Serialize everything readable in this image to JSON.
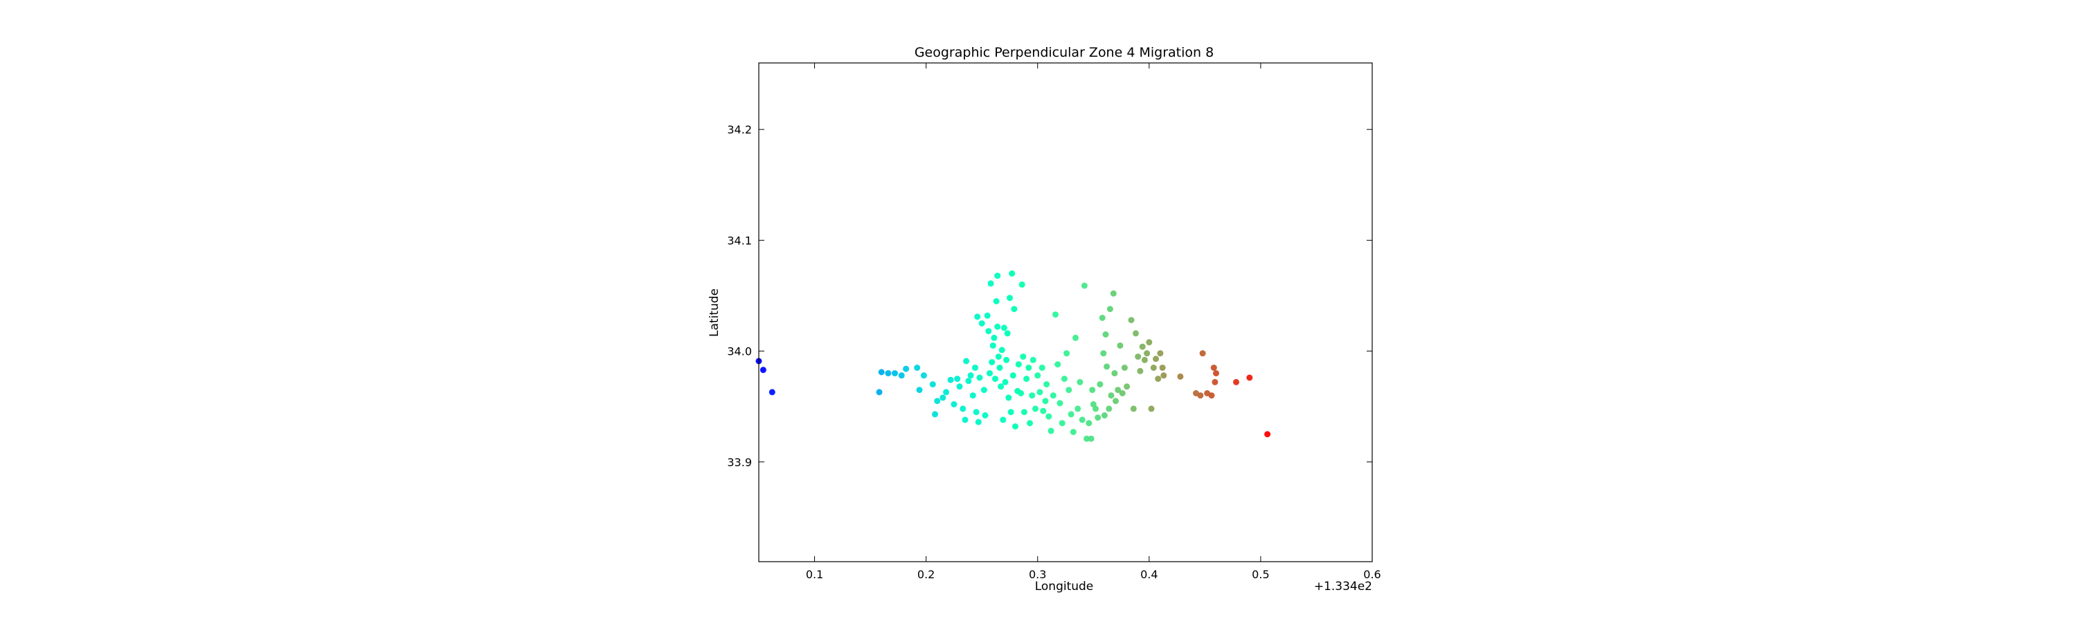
{
  "chart_data": {
    "type": "scatter",
    "title": "Geographic Perpendicular Zone 4 Migration 8",
    "xlabel": "Longitude",
    "ylabel": "Latitude",
    "x_offset_label": "+1.334e2",
    "xlim": [
      0.05,
      0.6
    ],
    "ylim": [
      33.81,
      34.26
    ],
    "x_ticks": [
      0.1,
      0.2,
      0.3,
      0.4,
      0.5,
      0.6
    ],
    "x_tick_labels": [
      "0.1",
      "0.2",
      "0.3",
      "0.4",
      "0.5",
      "0.6"
    ],
    "y_ticks": [
      33.9,
      34.0,
      34.1,
      34.2
    ],
    "y_tick_labels": [
      "33.9",
      "34.0",
      "34.1",
      "34.2"
    ],
    "grid": false,
    "colormap": "rainbow",
    "color_by": "longitude",
    "points": [
      [
        0.05,
        33.991
      ],
      [
        0.054,
        33.983
      ],
      [
        0.062,
        33.963
      ],
      [
        0.158,
        33.963
      ],
      [
        0.16,
        33.981
      ],
      [
        0.166,
        33.98
      ],
      [
        0.172,
        33.98
      ],
      [
        0.178,
        33.978
      ],
      [
        0.182,
        33.984
      ],
      [
        0.192,
        33.985
      ],
      [
        0.194,
        33.965
      ],
      [
        0.198,
        33.978
      ],
      [
        0.206,
        33.97
      ],
      [
        0.208,
        33.943
      ],
      [
        0.21,
        33.955
      ],
      [
        0.215,
        33.958
      ],
      [
        0.218,
        33.963
      ],
      [
        0.222,
        33.974
      ],
      [
        0.225,
        33.952
      ],
      [
        0.228,
        33.975
      ],
      [
        0.23,
        33.968
      ],
      [
        0.233,
        33.948
      ],
      [
        0.235,
        33.938
      ],
      [
        0.236,
        33.991
      ],
      [
        0.238,
        33.973
      ],
      [
        0.24,
        33.978
      ],
      [
        0.242,
        33.96
      ],
      [
        0.244,
        33.985
      ],
      [
        0.245,
        33.945
      ],
      [
        0.246,
        34.031
      ],
      [
        0.247,
        33.936
      ],
      [
        0.248,
        33.976
      ],
      [
        0.25,
        34.025
      ],
      [
        0.252,
        33.965
      ],
      [
        0.253,
        33.942
      ],
      [
        0.255,
        34.032
      ],
      [
        0.256,
        34.018
      ],
      [
        0.257,
        33.98
      ],
      [
        0.258,
        34.061
      ],
      [
        0.259,
        33.99
      ],
      [
        0.26,
        34.005
      ],
      [
        0.261,
        34.012
      ],
      [
        0.262,
        33.975
      ],
      [
        0.263,
        34.045
      ],
      [
        0.264,
        34.022
      ],
      [
        0.264,
        34.068
      ],
      [
        0.265,
        33.995
      ],
      [
        0.266,
        33.985
      ],
      [
        0.267,
        33.968
      ],
      [
        0.268,
        34.001
      ],
      [
        0.269,
        33.938
      ],
      [
        0.27,
        34.021
      ],
      [
        0.271,
        33.972
      ],
      [
        0.272,
        33.992
      ],
      [
        0.273,
        34.016
      ],
      [
        0.274,
        33.958
      ],
      [
        0.275,
        34.048
      ],
      [
        0.276,
        33.945
      ],
      [
        0.277,
        34.07
      ],
      [
        0.278,
        33.978
      ],
      [
        0.279,
        34.038
      ],
      [
        0.28,
        33.932
      ],
      [
        0.282,
        33.964
      ],
      [
        0.283,
        33.988
      ],
      [
        0.285,
        33.962
      ],
      [
        0.286,
        34.06
      ],
      [
        0.287,
        33.995
      ],
      [
        0.288,
        33.945
      ],
      [
        0.29,
        33.975
      ],
      [
        0.292,
        33.985
      ],
      [
        0.293,
        33.935
      ],
      [
        0.295,
        33.96
      ],
      [
        0.296,
        33.992
      ],
      [
        0.298,
        33.948
      ],
      [
        0.3,
        33.978
      ],
      [
        0.302,
        33.963
      ],
      [
        0.304,
        33.985
      ],
      [
        0.305,
        33.946
      ],
      [
        0.307,
        33.955
      ],
      [
        0.308,
        33.97
      ],
      [
        0.31,
        33.941
      ],
      [
        0.312,
        33.928
      ],
      [
        0.314,
        33.96
      ],
      [
        0.316,
        34.033
      ],
      [
        0.318,
        33.988
      ],
      [
        0.32,
        33.953
      ],
      [
        0.322,
        33.935
      ],
      [
        0.324,
        33.975
      ],
      [
        0.326,
        33.998
      ],
      [
        0.328,
        33.965
      ],
      [
        0.33,
        33.943
      ],
      [
        0.332,
        33.927
      ],
      [
        0.334,
        34.012
      ],
      [
        0.336,
        33.948
      ],
      [
        0.338,
        33.972
      ],
      [
        0.34,
        33.938
      ],
      [
        0.342,
        34.059
      ],
      [
        0.344,
        33.921
      ],
      [
        0.346,
        33.935
      ],
      [
        0.348,
        33.921
      ],
      [
        0.349,
        33.965
      ],
      [
        0.35,
        33.952
      ],
      [
        0.352,
        33.948
      ],
      [
        0.354,
        33.94
      ],
      [
        0.356,
        33.97
      ],
      [
        0.358,
        34.03
      ],
      [
        0.359,
        33.998
      ],
      [
        0.36,
        33.942
      ],
      [
        0.361,
        34.015
      ],
      [
        0.362,
        33.986
      ],
      [
        0.364,
        33.948
      ],
      [
        0.365,
        34.038
      ],
      [
        0.366,
        33.96
      ],
      [
        0.368,
        34.052
      ],
      [
        0.369,
        33.98
      ],
      [
        0.37,
        33.955
      ],
      [
        0.372,
        33.965
      ],
      [
        0.374,
        34.005
      ],
      [
        0.376,
        33.962
      ],
      [
        0.378,
        33.985
      ],
      [
        0.38,
        33.968
      ],
      [
        0.384,
        34.028
      ],
      [
        0.386,
        33.948
      ],
      [
        0.388,
        34.016
      ],
      [
        0.39,
        33.995
      ],
      [
        0.392,
        33.982
      ],
      [
        0.394,
        34.004
      ],
      [
        0.396,
        33.992
      ],
      [
        0.398,
        33.998
      ],
      [
        0.4,
        34.008
      ],
      [
        0.402,
        33.948
      ],
      [
        0.404,
        33.985
      ],
      [
        0.406,
        33.993
      ],
      [
        0.408,
        33.975
      ],
      [
        0.41,
        33.998
      ],
      [
        0.412,
        33.985
      ],
      [
        0.413,
        33.978
      ],
      [
        0.428,
        33.977
      ],
      [
        0.442,
        33.962
      ],
      [
        0.446,
        33.96
      ],
      [
        0.448,
        33.998
      ],
      [
        0.452,
        33.962
      ],
      [
        0.456,
        33.96
      ],
      [
        0.458,
        33.985
      ],
      [
        0.459,
        33.972
      ],
      [
        0.46,
        33.98
      ],
      [
        0.478,
        33.972
      ],
      [
        0.49,
        33.976
      ],
      [
        0.506,
        33.925
      ]
    ]
  }
}
